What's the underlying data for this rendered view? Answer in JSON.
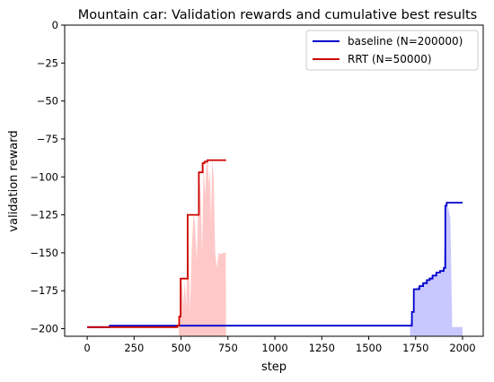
{
  "chart_data": {
    "type": "line",
    "title": "Mountain car: Validation rewards and cumulative best results",
    "xlabel": "step",
    "ylabel": "validation reward",
    "xlim": [
      -120,
      2110
    ],
    "ylim": [
      -205,
      0
    ],
    "x_ticks": [
      0,
      250,
      500,
      750,
      1000,
      1250,
      1500,
      1750,
      2000
    ],
    "x_tick_labels": [
      "0",
      "250",
      "500",
      "750",
      "1000",
      "1250",
      "1500",
      "1750",
      "2000"
    ],
    "y_ticks": [
      0,
      -25,
      -50,
      -75,
      -100,
      -125,
      -150,
      -175,
      -200
    ],
    "y_tick_labels": [
      "0",
      "−25",
      "−50",
      "−75",
      "−100",
      "−125",
      "−150",
      "−175",
      "−200"
    ],
    "grid": false,
    "legend_position": "top-right",
    "series": [
      {
        "name": "baseline (N=200000)",
        "color": "#0000cc",
        "fill_color": "#c8c8ff",
        "cumulative_best": [
          [
            0,
            -199
          ],
          [
            120,
            -199
          ],
          [
            120,
            -198
          ],
          [
            1730,
            -198
          ],
          [
            1730,
            -189
          ],
          [
            1740,
            -189
          ],
          [
            1740,
            -174
          ],
          [
            1770,
            -174
          ],
          [
            1770,
            -172
          ],
          [
            1790,
            -172
          ],
          [
            1790,
            -170
          ],
          [
            1810,
            -170
          ],
          [
            1810,
            -168
          ],
          [
            1825,
            -168
          ],
          [
            1825,
            -167
          ],
          [
            1840,
            -167
          ],
          [
            1840,
            -165
          ],
          [
            1860,
            -165
          ],
          [
            1860,
            -163
          ],
          [
            1880,
            -163
          ],
          [
            1880,
            -162
          ],
          [
            1900,
            -162
          ],
          [
            1900,
            -160
          ],
          [
            1908,
            -160
          ],
          [
            1908,
            -119
          ],
          [
            1915,
            -119
          ],
          [
            1915,
            -117
          ],
          [
            2000,
            -117
          ]
        ],
        "validation": [
          [
            1720,
            -198
          ],
          [
            1735,
            -188
          ],
          [
            1745,
            -174
          ],
          [
            1765,
            -172
          ],
          [
            1785,
            -170
          ],
          [
            1805,
            -168
          ],
          [
            1825,
            -166
          ],
          [
            1845,
            -165
          ],
          [
            1865,
            -163
          ],
          [
            1885,
            -162
          ],
          [
            1900,
            -160
          ],
          [
            1908,
            -119
          ],
          [
            1915,
            -117
          ],
          [
            1925,
            -121
          ],
          [
            1935,
            -127
          ],
          [
            1945,
            -199
          ],
          [
            2000,
            -199
          ]
        ]
      },
      {
        "name": "RRT (N=50000)",
        "color": "#cc0000",
        "fill_color": "#ffc8c8",
        "cumulative_best": [
          [
            0,
            -199
          ],
          [
            480,
            -199
          ],
          [
            480,
            -198
          ],
          [
            490,
            -198
          ],
          [
            490,
            -192
          ],
          [
            498,
            -192
          ],
          [
            498,
            -167
          ],
          [
            535,
            -167
          ],
          [
            535,
            -125
          ],
          [
            595,
            -125
          ],
          [
            595,
            -97
          ],
          [
            615,
            -97
          ],
          [
            615,
            -91
          ],
          [
            625,
            -91
          ],
          [
            625,
            -90
          ],
          [
            640,
            -90
          ],
          [
            640,
            -89
          ],
          [
            740,
            -89
          ]
        ],
        "validation": [
          [
            488,
            -198
          ],
          [
            495,
            -192
          ],
          [
            505,
            -167
          ],
          [
            512,
            -185
          ],
          [
            520,
            -168
          ],
          [
            528,
            -185
          ],
          [
            538,
            -125
          ],
          [
            548,
            -190
          ],
          [
            556,
            -150
          ],
          [
            566,
            -125
          ],
          [
            574,
            -130
          ],
          [
            584,
            -155
          ],
          [
            596,
            -98
          ],
          [
            604,
            -110
          ],
          [
            612,
            -150
          ],
          [
            620,
            -92
          ],
          [
            628,
            -112
          ],
          [
            636,
            -90
          ],
          [
            642,
            -89
          ],
          [
            648,
            -105
          ],
          [
            654,
            -95
          ],
          [
            660,
            -130
          ],
          [
            666,
            -89
          ],
          [
            674,
            -100
          ],
          [
            682,
            -150
          ],
          [
            690,
            -160
          ],
          [
            700,
            -150
          ],
          [
            712,
            -151
          ],
          [
            725,
            -150
          ],
          [
            738,
            -150
          ],
          [
            740,
            -199
          ]
        ]
      }
    ]
  }
}
